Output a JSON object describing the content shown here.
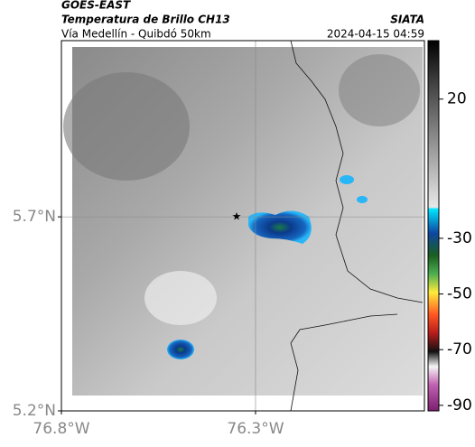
{
  "header": {
    "source": "GOES-EAST",
    "title": "Temperatura de Brillo CH13",
    "subtitle": "Vía Medellín - Quibdó 50km",
    "org": "SIATA",
    "timestamp": "2024-04-15 04:59"
  },
  "map": {
    "xlim": [
      -76.8,
      -75.865
    ],
    "ylim": [
      5.2,
      6.154
    ],
    "xticks": [
      {
        "value": -76.8,
        "label": "76.8°W"
      },
      {
        "value": -76.3,
        "label": "76.3°W"
      }
    ],
    "yticks": [
      {
        "value": 5.2,
        "label": "5.2°N"
      },
      {
        "value": 5.7,
        "label": "5.7°N"
      }
    ],
    "grid": true
  },
  "colorbar": {
    "lim": [
      -92,
      41
    ],
    "ticks": [
      20,
      -30,
      -50,
      -70,
      -90
    ]
  }
}
